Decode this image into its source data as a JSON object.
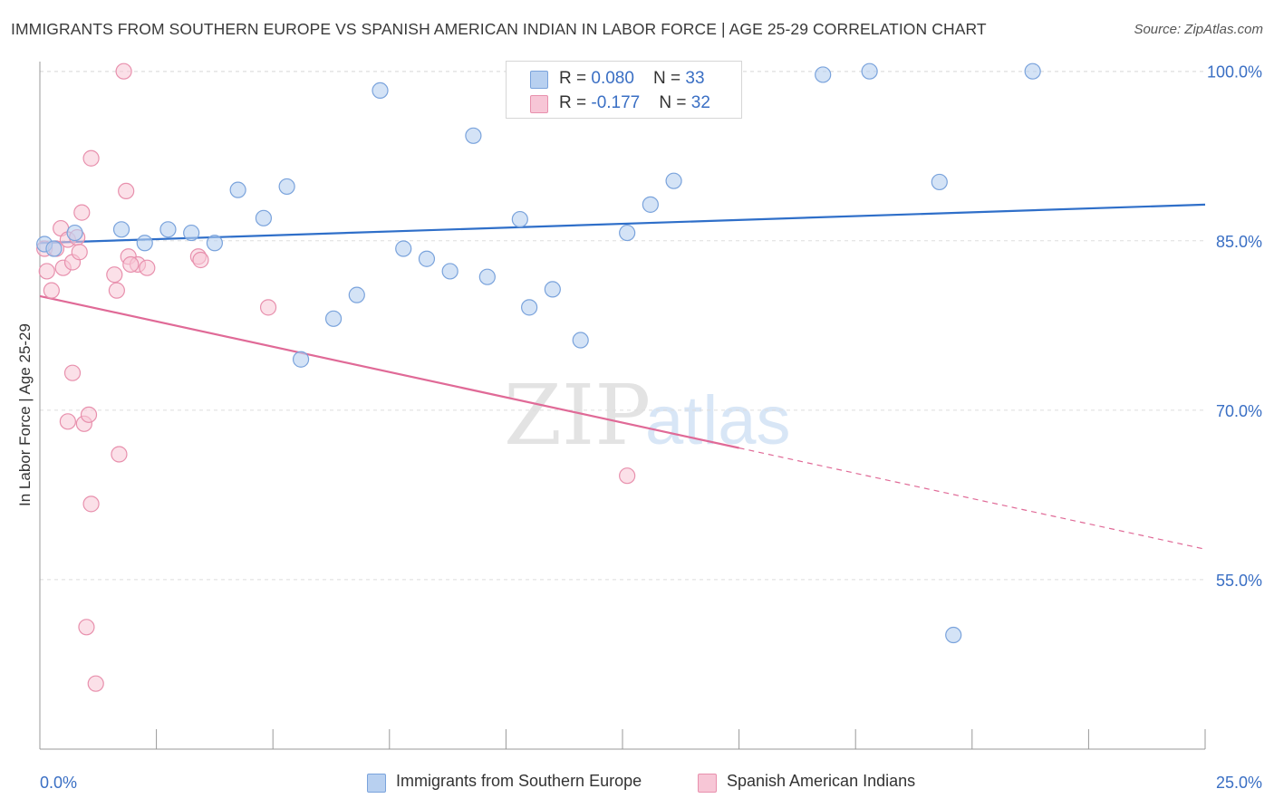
{
  "header": {
    "title": "IMMIGRANTS FROM SOUTHERN EUROPE VS SPANISH AMERICAN INDIAN IN LABOR FORCE | AGE 25-29 CORRELATION CHART",
    "source": "Source: ZipAtlas.com"
  },
  "watermark": {
    "zip": "ZIP",
    "atlas": "atlas"
  },
  "legend_top": {
    "rows": [
      {
        "r_label": "R = ",
        "r_value": "0.080",
        "n_label": "N = ",
        "n_value": "33"
      },
      {
        "r_label": "R = ",
        "r_value": "-0.177",
        "n_label": "N = ",
        "n_value": "32"
      }
    ]
  },
  "colors": {
    "blue_fill": "#b8d0f0",
    "blue_stroke": "#7aa3dc",
    "blue_line": "#2f6fc9",
    "pink_fill": "#f7c6d6",
    "pink_stroke": "#e890ad",
    "pink_line": "#e06a97",
    "axis_text": "#3a6fc4",
    "grid": "#dddddd"
  },
  "chart_data": {
    "type": "scatter",
    "title": "IMMIGRANTS FROM SOUTHERN EUROPE VS SPANISH AMERICAN INDIAN IN LABOR FORCE | AGE 25-29 CORRELATION CHART",
    "xlabel": "",
    "ylabel": "In Labor Force | Age 25-29",
    "xlim": [
      0,
      25
    ],
    "ylim": [
      40,
      101.5
    ],
    "x_tick_labels": [
      "0.0%",
      "25.0%"
    ],
    "y_ticks": [
      55,
      70,
      85,
      100
    ],
    "y_tick_labels": [
      "55.0%",
      "70.0%",
      "85.0%",
      "100.0%"
    ],
    "grid": true,
    "legend_position": "bottom",
    "series": [
      {
        "name": "Immigrants from Southern Europe",
        "color": "#b8d0f0",
        "r": 0.08,
        "n": 33,
        "trend": {
          "x": [
            0,
            25
          ],
          "y": [
            84.8,
            88.2
          ],
          "dashed_from": null
        },
        "points": [
          [
            0.1,
            84.7
          ],
          [
            0.3,
            84.3
          ],
          [
            0.75,
            85.7
          ],
          [
            1.75,
            86.0
          ],
          [
            2.25,
            84.8
          ],
          [
            2.75,
            86.0
          ],
          [
            3.25,
            85.7
          ],
          [
            3.75,
            84.8
          ],
          [
            4.25,
            89.5
          ],
          [
            4.8,
            87.0
          ],
          [
            5.3,
            89.8
          ],
          [
            5.6,
            74.5
          ],
          [
            6.3,
            78.1
          ],
          [
            6.8,
            80.2
          ],
          [
            7.3,
            98.3
          ],
          [
            7.8,
            84.3
          ],
          [
            8.3,
            83.4
          ],
          [
            8.8,
            82.3
          ],
          [
            9.3,
            94.3
          ],
          [
            9.6,
            81.8
          ],
          [
            10.3,
            86.9
          ],
          [
            10.5,
            79.1
          ],
          [
            11.0,
            80.7
          ],
          [
            11.6,
            76.2
          ],
          [
            12.3,
            100.0
          ],
          [
            12.6,
            85.7
          ],
          [
            13.1,
            88.2
          ],
          [
            13.6,
            90.3
          ],
          [
            16.8,
            99.7
          ],
          [
            17.8,
            100.0
          ],
          [
            19.3,
            90.2
          ],
          [
            19.6,
            50.1
          ],
          [
            21.3,
            100.0
          ]
        ]
      },
      {
        "name": "Spanish American Indians",
        "color": "#f7c6d6",
        "r": -0.177,
        "n": 32,
        "trend": {
          "x": [
            0,
            25
          ],
          "y": [
            80.1,
            57.7
          ],
          "dashed_from": 15
        },
        "points": [
          [
            0.1,
            84.3
          ],
          [
            0.15,
            82.3
          ],
          [
            0.25,
            80.6
          ],
          [
            0.35,
            84.3
          ],
          [
            0.45,
            86.1
          ],
          [
            0.5,
            82.6
          ],
          [
            0.6,
            69.0
          ],
          [
            0.6,
            85.1
          ],
          [
            0.7,
            83.1
          ],
          [
            0.7,
            73.3
          ],
          [
            0.8,
            85.3
          ],
          [
            0.85,
            84.0
          ],
          [
            0.9,
            87.5
          ],
          [
            0.95,
            68.8
          ],
          [
            1.0,
            50.8
          ],
          [
            1.05,
            69.6
          ],
          [
            1.1,
            61.7
          ],
          [
            1.2,
            45.8
          ],
          [
            1.1,
            92.3
          ],
          [
            1.6,
            82.0
          ],
          [
            1.65,
            80.6
          ],
          [
            1.7,
            66.1
          ],
          [
            1.8,
            100.0
          ],
          [
            1.85,
            89.4
          ],
          [
            1.9,
            83.6
          ],
          [
            2.1,
            82.9
          ],
          [
            2.3,
            82.6
          ],
          [
            3.4,
            83.6
          ],
          [
            3.45,
            83.3
          ],
          [
            4.9,
            79.1
          ],
          [
            12.6,
            64.2
          ],
          [
            1.95,
            82.9
          ]
        ]
      }
    ]
  },
  "legend_bottom": {
    "items": [
      {
        "label": "Immigrants from Southern Europe"
      },
      {
        "label": "Spanish American Indians"
      }
    ]
  }
}
